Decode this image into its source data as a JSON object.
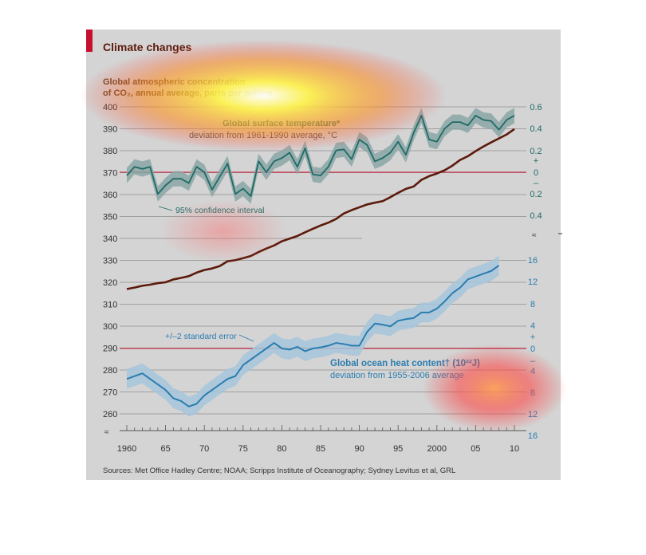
{
  "title": "Climate changes",
  "source": "Sources: Met Office Hadley Centre; NOAA; Scripps Institute of Oceanography; Sydney Levitus et al, GRL",
  "colors": {
    "panel_bg": "#d4d4d4",
    "accent_red": "#c8102e",
    "co2_line": "#5c1a0b",
    "temp_line": "#1f6b66",
    "temp_band": "#8aa6a4",
    "ocean_line": "#2b7db0",
    "ocean_band": "#a6c6da",
    "grid": "#8f8f8f"
  },
  "overlay": {
    "description_hotspots": [
      "yellow-red glow over CO2 label",
      "red glow near ocean axis 4–8",
      "faint red glow mid-left"
    ]
  },
  "chart_data": [
    {
      "type": "line",
      "name_label": [
        "Global atmospheric concentration",
        "of CO₂, annual average, parts per million"
      ],
      "ylabel_axis": "left",
      "yticks": [
        260,
        270,
        280,
        290,
        300,
        310,
        320,
        330,
        340,
        350,
        360,
        370,
        380,
        390,
        400
      ],
      "ylim": [
        255,
        403
      ],
      "x": [
        1960,
        1961,
        1962,
        1963,
        1964,
        1965,
        1966,
        1967,
        1968,
        1969,
        1970,
        1971,
        1972,
        1973,
        1974,
        1975,
        1976,
        1977,
        1978,
        1979,
        1980,
        1981,
        1982,
        1983,
        1984,
        1985,
        1986,
        1987,
        1988,
        1989,
        1990,
        1991,
        1992,
        1993,
        1994,
        1995,
        1996,
        1997,
        1998,
        1999,
        2000,
        2001,
        2002,
        2003,
        2004,
        2005,
        2006,
        2007,
        2008,
        2009,
        2010
      ],
      "values": [
        316.9,
        317.6,
        318.4,
        318.9,
        319.6,
        320.0,
        321.3,
        322.0,
        322.8,
        324.4,
        325.6,
        326.3,
        327.4,
        329.6,
        330.1,
        331.0,
        332.0,
        333.8,
        335.4,
        336.8,
        338.7,
        339.9,
        341.1,
        342.8,
        344.4,
        345.9,
        347.2,
        348.9,
        351.4,
        352.9,
        354.2,
        355.5,
        356.3,
        357.0,
        358.8,
        360.8,
        362.6,
        363.7,
        366.7,
        368.4,
        369.6,
        371.1,
        373.2,
        375.8,
        377.5,
        379.8,
        381.9,
        383.8,
        385.6,
        387.4,
        389.9
      ]
    },
    {
      "type": "line",
      "title": "Global surface temperature*",
      "subtitle": "deviation from 1961-1990 average, °C",
      "band_label": "95% confidence interval",
      "axis": "right-top",
      "ytick_labels": [
        "0.6",
        "0.4",
        "0.2",
        "+",
        "0",
        "–",
        "0.2",
        "0.4"
      ],
      "ytick_values": [
        0.6,
        0.4,
        0.2,
        0,
        -0.2,
        -0.4
      ],
      "ylim": [
        -0.4,
        0.6
      ],
      "x": [
        1960,
        1961,
        1962,
        1963,
        1964,
        1965,
        1966,
        1967,
        1968,
        1969,
        1970,
        1971,
        1972,
        1973,
        1974,
        1975,
        1976,
        1977,
        1978,
        1979,
        1980,
        1981,
        1982,
        1983,
        1984,
        1985,
        1986,
        1987,
        1988,
        1989,
        1990,
        1991,
        1992,
        1993,
        1994,
        1995,
        1996,
        1997,
        1998,
        1999,
        2000,
        2001,
        2002,
        2003,
        2004,
        2005,
        2006,
        2007,
        2008,
        2009,
        2010
      ],
      "values": [
        -0.03,
        0.05,
        0.03,
        0.05,
        -0.2,
        -0.12,
        -0.06,
        -0.06,
        -0.1,
        0.05,
        0.0,
        -0.16,
        -0.04,
        0.08,
        -0.2,
        -0.15,
        -0.22,
        0.1,
        0.0,
        0.1,
        0.13,
        0.18,
        0.05,
        0.22,
        -0.02,
        -0.03,
        0.05,
        0.2,
        0.21,
        0.12,
        0.3,
        0.25,
        0.1,
        0.13,
        0.18,
        0.28,
        0.16,
        0.36,
        0.52,
        0.3,
        0.28,
        0.4,
        0.46,
        0.46,
        0.43,
        0.52,
        0.48,
        0.47,
        0.39,
        0.48,
        0.52
      ],
      "band_halfwidth": 0.07
    },
    {
      "type": "line",
      "title": "Global ocean heat content† (10²²J)",
      "subtitle": "deviation from 1955-2006 average",
      "band_label": "+/–2 standard error",
      "axis": "right-bottom",
      "ytick_labels": [
        "16",
        "12",
        "8",
        "4",
        "+",
        "0",
        "–",
        "4",
        "8",
        "12",
        "16"
      ],
      "ytick_values": [
        16,
        12,
        8,
        4,
        0,
        -4,
        -8,
        -12,
        -16
      ],
      "ylim": [
        -16,
        16
      ],
      "x": [
        1960,
        1961,
        1962,
        1963,
        1964,
        1965,
        1966,
        1967,
        1968,
        1969,
        1970,
        1971,
        1972,
        1973,
        1974,
        1975,
        1976,
        1977,
        1978,
        1979,
        1980,
        1981,
        1982,
        1983,
        1984,
        1985,
        1986,
        1987,
        1988,
        1989,
        1990,
        1991,
        1992,
        1993,
        1994,
        1995,
        1996,
        1997,
        1998,
        1999,
        2000,
        2001,
        2002,
        2003,
        2004,
        2005,
        2006,
        2007,
        2008
      ],
      "values": [
        -5.5,
        -5,
        -4.5,
        -5.5,
        -6.5,
        -7.5,
        -9,
        -9.5,
        -10.5,
        -10,
        -8.5,
        -7.5,
        -6.5,
        -5.5,
        -5,
        -3,
        -2,
        -1,
        0,
        1,
        0,
        -0.2,
        0.3,
        -0.5,
        0,
        0.2,
        0.5,
        1,
        0.8,
        0.5,
        0.5,
        3,
        4.5,
        4.3,
        4,
        5,
        5.3,
        5.5,
        6.5,
        6.5,
        7.2,
        8.5,
        10,
        11,
        12.5,
        13,
        13.5,
        14,
        15
      ],
      "band_halfwidth": 1.8
    }
  ],
  "x_axis": {
    "tick_labels": [
      "1960",
      "65",
      "70",
      "75",
      "80",
      "85",
      "90",
      "95",
      "2000",
      "05",
      "10"
    ],
    "tick_values": [
      1960,
      1965,
      1970,
      1975,
      1980,
      1985,
      1990,
      1995,
      2000,
      2005,
      2010
    ],
    "xlim": [
      1960,
      2010
    ]
  },
  "axis_break_symbol": "≈"
}
